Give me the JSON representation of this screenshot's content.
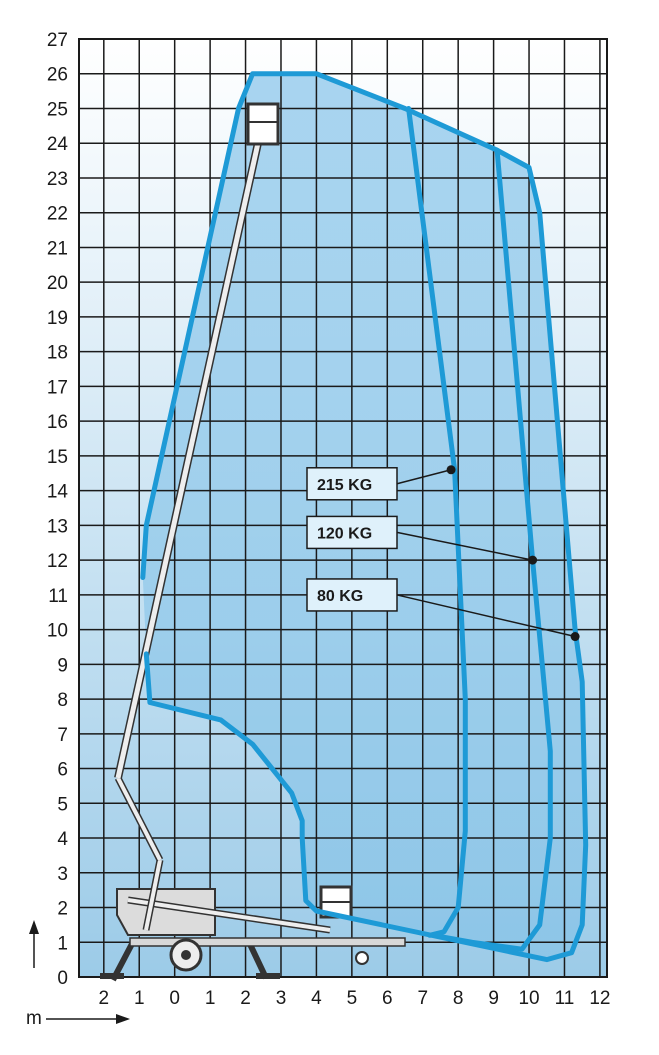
{
  "chart_data": {
    "type": "line",
    "title": "",
    "xlabel": "m",
    "ylabel": "",
    "xlim": [
      -2.7,
      12.2
    ],
    "ylim": [
      0,
      27
    ],
    "grid": true,
    "x_tick_labels": [
      "2",
      "1",
      "0",
      "1",
      "2",
      "3",
      "4",
      "5",
      "6",
      "7",
      "8",
      "9",
      "10",
      "11",
      "12"
    ],
    "x_tick_values": [
      -2,
      -1,
      0,
      1,
      2,
      3,
      4,
      5,
      6,
      7,
      8,
      9,
      10,
      11,
      12
    ],
    "y_ticks": [
      0,
      1,
      2,
      3,
      4,
      5,
      6,
      7,
      8,
      9,
      10,
      11,
      12,
      13,
      14,
      15,
      16,
      17,
      18,
      19,
      20,
      21,
      22,
      23,
      24,
      25,
      26,
      27
    ],
    "series": [
      {
        "name": "80 KG",
        "x": [
          -0.9,
          -0.8,
          0.5,
          1.8,
          2.2,
          3.0,
          4.0,
          4.5,
          6.5,
          9.1,
          10.0,
          10.3,
          11.3,
          11.5,
          11.6,
          11.5,
          11.2,
          10.5,
          4.0,
          3.7,
          3.6,
          3.6,
          3.3,
          2.2,
          1.3,
          -0.7,
          -0.8
        ],
        "y": [
          11.5,
          13.0,
          19.0,
          25.0,
          26.0,
          26.0,
          26.0,
          25.8,
          25.0,
          23.8,
          23.3,
          22.0,
          10.0,
          8.5,
          3.8,
          1.5,
          0.7,
          0.5,
          1.9,
          2.2,
          4.0,
          4.5,
          5.3,
          6.7,
          7.4,
          7.9,
          9.3
        ]
      },
      {
        "name": "120 KG",
        "x": [
          9.1,
          10.1,
          10.6,
          10.6,
          10.3,
          9.8,
          8.4,
          7.3
        ],
        "y": [
          23.8,
          12.0,
          6.5,
          4.0,
          1.5,
          0.8,
          1.0,
          1.2
        ]
      },
      {
        "name": "215 KG",
        "x": [
          6.6,
          7.9,
          8.2,
          8.2,
          8.0,
          7.6,
          7.2
        ],
        "y": [
          25.0,
          14.6,
          8.0,
          4.2,
          2.0,
          1.3,
          1.2
        ]
      }
    ],
    "annotations": [
      {
        "text": "215 KG",
        "point": [
          7.8,
          14.6
        ]
      },
      {
        "text": "120 KG",
        "point": [
          10.1,
          12.0
        ]
      },
      {
        "text": "80 KG",
        "point": [
          11.3,
          9.8
        ]
      }
    ]
  }
}
